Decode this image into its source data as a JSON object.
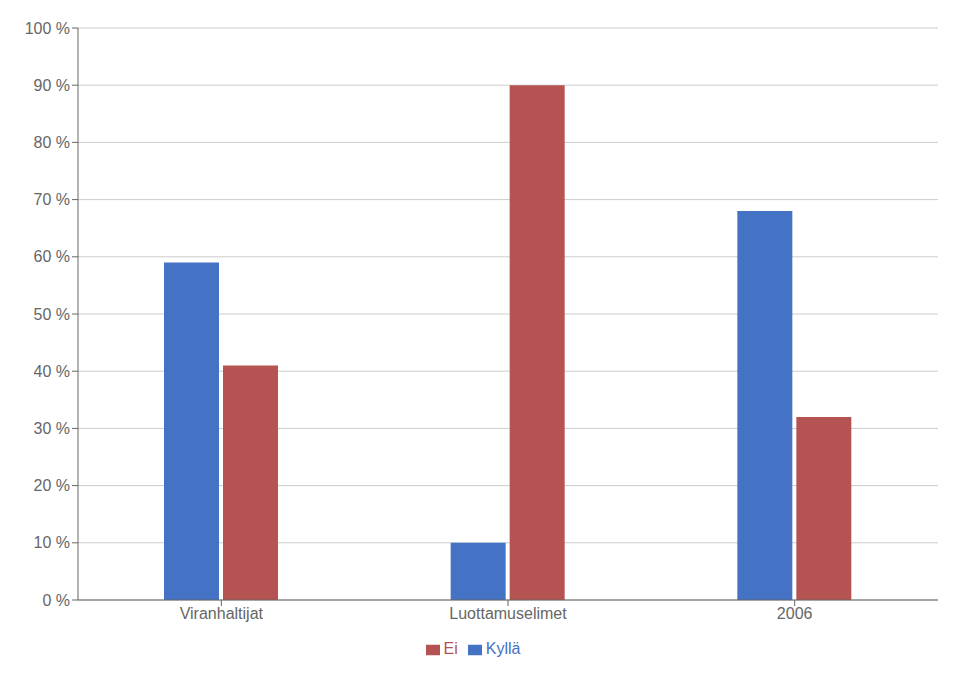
{
  "chart_data": {
    "type": "bar",
    "categories": [
      "Viranhaltijat",
      "Luottamuselimet",
      "2006"
    ],
    "series": [
      {
        "name": "Kyllä",
        "color": "#4472C4",
        "values": [
          59,
          10,
          68
        ]
      },
      {
        "name": "Ei",
        "color": "#B55252",
        "values": [
          41,
          90,
          32
        ]
      }
    ],
    "ylim": [
      0,
      100
    ],
    "yticks": [
      {
        "value": 0,
        "label": "0 %"
      },
      {
        "value": 10,
        "label": "10 %"
      },
      {
        "value": 20,
        "label": "20 %"
      },
      {
        "value": 30,
        "label": "30 %"
      },
      {
        "value": 40,
        "label": "40 %"
      },
      {
        "value": 50,
        "label": "50 %"
      },
      {
        "value": 60,
        "label": "60 %"
      },
      {
        "value": 70,
        "label": "70 %"
      },
      {
        "value": 80,
        "label": "80 %"
      },
      {
        "value": 90,
        "label": "90 %"
      },
      {
        "value": 100,
        "label": "100 %"
      }
    ],
    "grid": true,
    "legend": "bottom"
  }
}
